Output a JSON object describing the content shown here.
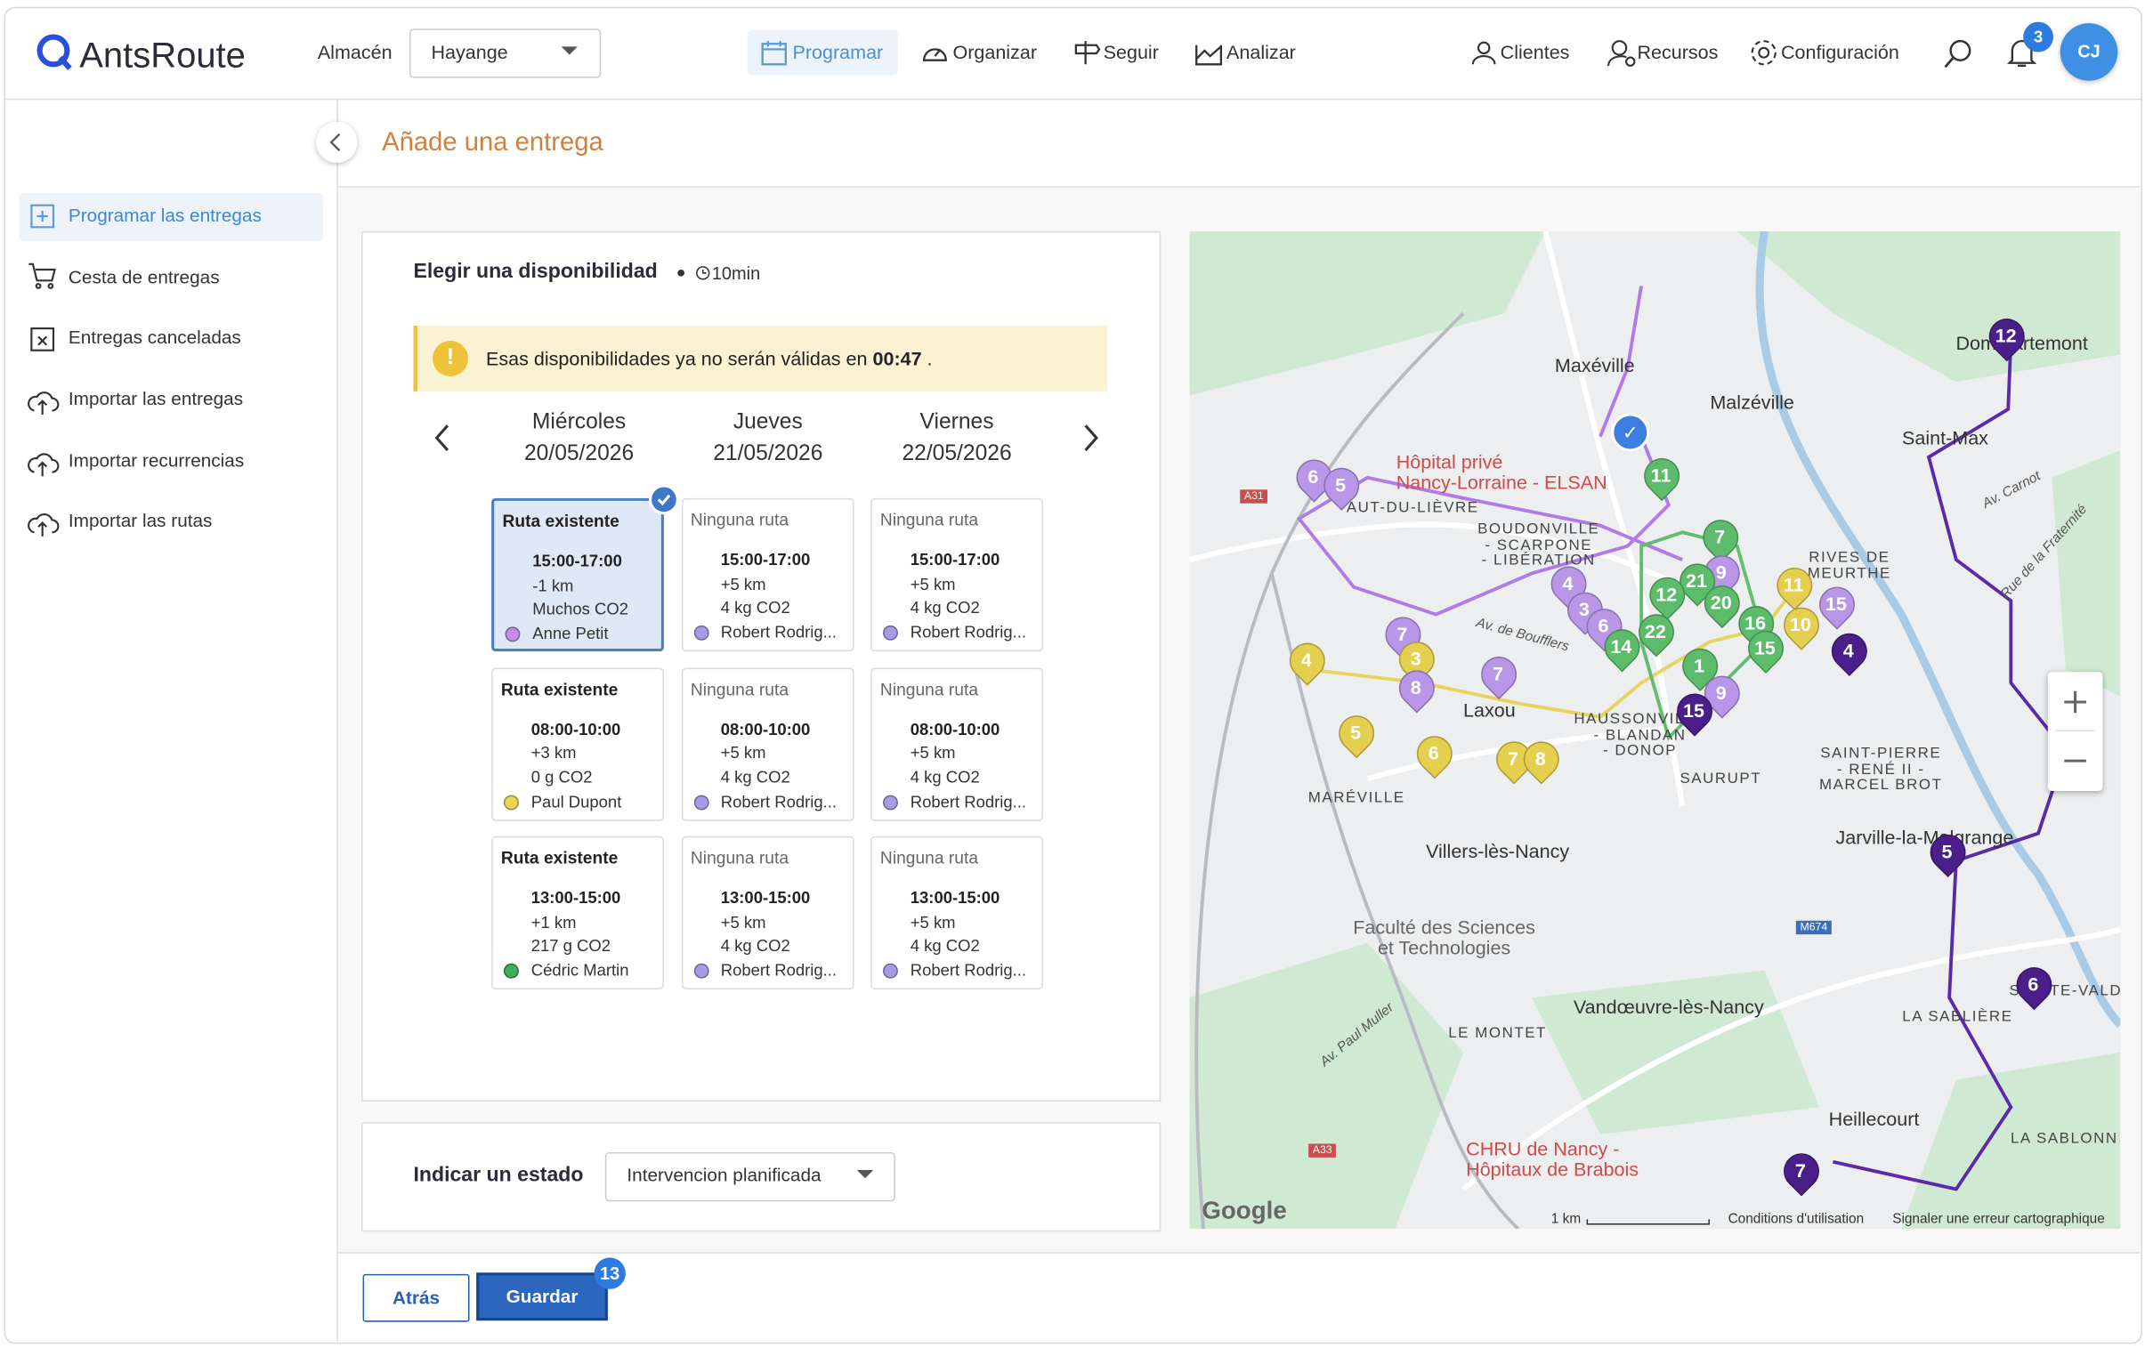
{
  "header": {
    "logo": "AntsRoute",
    "warehouse_label": "Almacén",
    "warehouse_value": "Hayange",
    "nav": [
      "Programar",
      "Organizar",
      "Seguir",
      "Analizar"
    ],
    "tools": [
      "Clientes",
      "Recursos",
      "Configuración"
    ],
    "notification_count": 3,
    "avatar": "CJ"
  },
  "sidebar": {
    "items": [
      "Programar las entregas",
      "Cesta de entregas",
      "Entregas canceladas",
      "Importar las entregas",
      "Importar recurrencias",
      "Importar las rutas"
    ]
  },
  "page": {
    "title": "Añade una entrega"
  },
  "availability": {
    "title": "Elegir una disponibilidad",
    "duration": "10min",
    "warning": {
      "text": "Esas disponibilidades ya no serán válidas en",
      "countdown": "00:47",
      "end": "."
    },
    "days": [
      {
        "name": "Miércoles",
        "date": "20/05/2026",
        "slots": [
          {
            "title": "Ruta existente",
            "time": "15:00-17:00",
            "distance": "-1 km",
            "co2": "Muchos CO2",
            "driver": "Anne Petit",
            "color": "#c48ee8",
            "selected": true
          },
          {
            "title": "Ruta existente",
            "time": "08:00-10:00",
            "distance": "+3 km",
            "co2": "0 g CO2",
            "driver": "Paul Dupont",
            "color": "#ecd653",
            "selected": false
          },
          {
            "title": "Ruta existente",
            "time": "13:00-15:00",
            "distance": "+1 km",
            "co2": "217 g CO2",
            "driver": "Cédric Martin",
            "color": "#3fae5a",
            "selected": false
          }
        ]
      },
      {
        "name": "Jueves",
        "date": "21/05/2026",
        "slots": [
          {
            "title": "Ninguna ruta",
            "time": "15:00-17:00",
            "distance": "+5 km",
            "co2": "4 kg CO2",
            "driver": "Robert Rodrig...",
            "color": "#a99ae6",
            "selected": false
          },
          {
            "title": "Ninguna ruta",
            "time": "08:00-10:00",
            "distance": "+5 km",
            "co2": "4 kg CO2",
            "driver": "Robert Rodrig...",
            "color": "#a99ae6",
            "selected": false
          },
          {
            "title": "Ninguna ruta",
            "time": "13:00-15:00",
            "distance": "+5 km",
            "co2": "4 kg CO2",
            "driver": "Robert Rodrig...",
            "color": "#a99ae6",
            "selected": false
          }
        ]
      },
      {
        "name": "Viernes",
        "date": "22/05/2026",
        "slots": [
          {
            "title": "Ninguna ruta",
            "time": "15:00-17:00",
            "distance": "+5 km",
            "co2": "4 kg CO2",
            "driver": "Robert Rodrig...",
            "color": "#a99ae6",
            "selected": false
          },
          {
            "title": "Ninguna ruta",
            "time": "08:00-10:00",
            "distance": "+5 km",
            "co2": "4 kg CO2",
            "driver": "Robert Rodrig...",
            "color": "#a99ae6",
            "selected": false
          },
          {
            "title": "Ninguna ruta",
            "time": "13:00-15:00",
            "distance": "+5 km",
            "co2": "4 kg CO2",
            "driver": "Robert Rodrig...",
            "color": "#a99ae6",
            "selected": false
          }
        ]
      }
    ]
  },
  "status": {
    "label": "Indicar un estado",
    "value": "Intervencion planificada"
  },
  "footer": {
    "back": "Atrás",
    "save": "Guardar",
    "save_badge": 13
  },
  "map": {
    "labels": [
      "Maxéville",
      "Malzéville",
      "Saint-Max",
      "Dommartemont",
      "Hôpital privé\nNancy-Lorraine - ELSAN",
      "AUT-DU-LIÈVRE",
      "BOUDONVILLE\n- SCARPONE\n- LIBÉRATION",
      "RIVES DE\nMEURTHE",
      "Laxou",
      "HAUSSONVILLE\n- BLANDAN\n- DONOP",
      "SAURUPT",
      "SAINT-PIERRE\n- RENÉ II -\nMARCEL BROT",
      "MARÉVILLE",
      "Villers-lès-Nancy",
      "Jarville-la-Malgrange",
      "Faculté des Sciences\net Technologies",
      "Vandœuvre-lès-Nancy",
      "LE MONTET",
      "LA SABLIÈRE",
      "Heillecourt",
      "LA SABLONN",
      "CHRU de Nancy -\nHôpitaux de Brabois",
      "Av. Carnot",
      "Rue de la Fraternité",
      "Av. Paul Muller",
      "Av. de Boufflers",
      "Google",
      "1 km",
      "Conditions d'utilisation",
      "Signaler une erreur cartographique",
      "A31",
      "A33",
      "M674",
      "SAINTE-VALD"
    ],
    "markers": [
      6,
      5,
      11,
      4,
      3,
      6,
      7,
      9,
      21,
      12,
      20,
      16,
      22,
      14,
      15,
      11,
      10,
      15,
      4,
      1,
      9,
      15,
      7,
      3,
      8,
      4,
      7,
      5,
      6,
      7,
      8,
      12,
      5,
      6,
      7
    ]
  }
}
